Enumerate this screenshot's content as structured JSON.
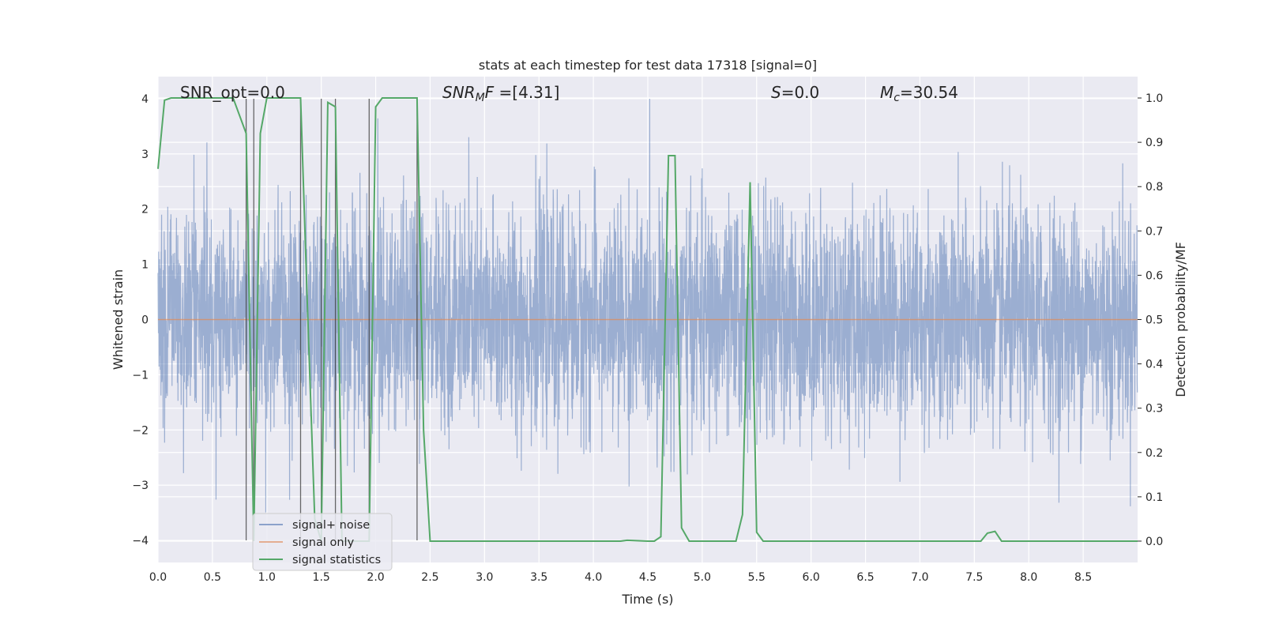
{
  "chart_data": {
    "type": "line",
    "title": "stats at each timestep for test data 17318 [signal=0]",
    "xlabel": "Time (s)",
    "ylabel": "Whitened strain",
    "y2label": "Detection probability/MF",
    "xlim": [
      0.0,
      9.0
    ],
    "ylim": [
      -4.4,
      4.4
    ],
    "y2lim": [
      -0.0482,
      1.0482
    ],
    "xticks": [
      "0.0",
      "0.5",
      "1.0",
      "1.5",
      "2.0",
      "2.5",
      "3.0",
      "3.5",
      "4.0",
      "4.5",
      "5.0",
      "5.5",
      "6.0",
      "6.5",
      "7.0",
      "7.5",
      "8.0",
      "8.5"
    ],
    "yticks": [
      "4",
      "3",
      "2",
      "1",
      "0",
      "−1",
      "−2",
      "−3",
      "−4"
    ],
    "y2ticks": [
      "1.0",
      "0.9",
      "0.8",
      "0.7",
      "0.6",
      "0.5",
      "0.4",
      "0.3",
      "0.2",
      "0.1",
      "0.0"
    ],
    "grid": true,
    "legend_position": "lower-left",
    "annotations": {
      "snr_opt": "SNR_opt=0.0",
      "snr_mf_main": "SNR",
      "snr_mf_sub": "M",
      "snr_mf_rest": "F=[4.31]",
      "s_italic": "S",
      "s_rest": "=0.0",
      "mc_main": "M",
      "mc_sub": "c",
      "mc_rest": "=30.54"
    },
    "vlines_x": [
      0.81,
      0.88,
      1.31,
      1.5,
      1.63,
      1.94,
      2.38
    ],
    "vlines_ymin": -4.0,
    "vlines_ymax": 4.0,
    "series": [
      {
        "name": "signal+ noise",
        "color": "#4c72b0",
        "kind": "noise",
        "sample_rate": 512,
        "amplitude_std": 1.0,
        "ylim_clip": [
          -4.0,
          4.0
        ],
        "axis": "left"
      },
      {
        "name": "signal only",
        "color": "#dd8452",
        "kind": "line",
        "x": [
          0.0,
          9.0
        ],
        "y": [
          0.0,
          0.0
        ],
        "axis": "left"
      },
      {
        "name": "signal statistics",
        "color": "#55a868",
        "kind": "line",
        "axis": "right",
        "x": [
          0.0,
          0.06,
          0.12,
          0.5,
          0.69,
          0.81,
          0.88,
          0.94,
          1.0,
          1.06,
          1.31,
          1.37,
          1.44,
          1.5,
          1.56,
          1.63,
          1.69,
          1.94,
          2.0,
          2.06,
          2.38,
          2.44,
          2.5,
          4.25,
          4.31,
          4.5,
          4.56,
          4.62,
          4.69,
          4.75,
          4.81,
          4.88,
          5.31,
          5.37,
          5.44,
          5.5,
          5.56,
          7.56,
          7.62,
          7.69,
          7.75,
          9.0
        ],
        "y": [
          0.84,
          0.995,
          1.0,
          1.0,
          1.0,
          0.92,
          0.0,
          0.92,
          1.0,
          1.0,
          1.0,
          0.55,
          0.05,
          0.0,
          0.99,
          0.98,
          0.0,
          0.0,
          0.98,
          1.0,
          1.0,
          0.25,
          0.0,
          0.0,
          0.002,
          0.0,
          0.0,
          0.01,
          0.87,
          0.87,
          0.03,
          0.0,
          0.0,
          0.06,
          0.81,
          0.02,
          0.0,
          0.0,
          0.018,
          0.022,
          0.0,
          0.0
        ]
      }
    ]
  }
}
